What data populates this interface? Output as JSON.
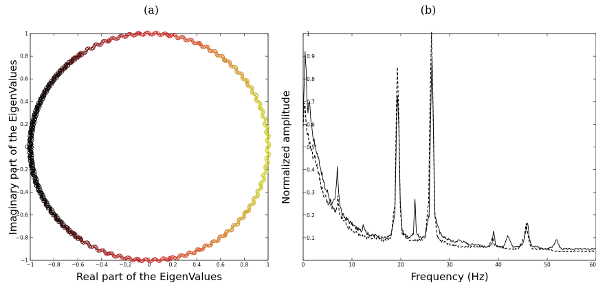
{
  "chart_data": [
    {
      "panel_label": "(a)",
      "type": "scatter",
      "xlabel": "Real part of the EigenValues",
      "ylabel": "Imaginary part of the EigenValues",
      "xlim": [
        -1,
        1
      ],
      "ylim": [
        -1,
        1
      ],
      "xticks": [
        "−1",
        "−0.8",
        "−0.6",
        "−0.4",
        "−0.2",
        "0",
        "0.2",
        "0.4",
        "0.6",
        "0.8",
        "1"
      ],
      "yticks": [
        "−1",
        "−0.8",
        "−0.6",
        "−0.4",
        "−0.2",
        "0",
        "0.2",
        "0.4",
        "0.6",
        "0.8",
        "1"
      ],
      "grid": false,
      "description_points": "eigenvalues lying on the unit circle |z| = 1",
      "points": [
        {
          "angle_deg": 0,
          "x": 1.0,
          "y": 0.0,
          "color": "#d8d020"
        },
        {
          "angle_deg": 20,
          "x": 0.94,
          "y": 0.34,
          "color": "#c8c820"
        },
        {
          "angle_deg": 35,
          "x": 0.82,
          "y": 0.57,
          "color": "#d0a020"
        },
        {
          "angle_deg": 50,
          "x": 0.64,
          "y": 0.77,
          "color": "#d08020"
        },
        {
          "angle_deg": 65,
          "x": 0.42,
          "y": 0.91,
          "color": "#d05020"
        },
        {
          "angle_deg": 80,
          "x": 0.17,
          "y": 0.98,
          "color": "#d03020"
        },
        {
          "angle_deg": 95,
          "x": -0.09,
          "y": 1.0,
          "color": "#c02020"
        },
        {
          "angle_deg": 110,
          "x": -0.34,
          "y": 0.94,
          "color": "#a01818"
        },
        {
          "angle_deg": 125,
          "x": -0.57,
          "y": 0.82,
          "color": "#601010"
        },
        {
          "angle_deg": 140,
          "x": -0.77,
          "y": 0.64,
          "color": "#200808"
        },
        {
          "angle_deg": 160,
          "x": -0.94,
          "y": 0.34,
          "color": "#000000"
        },
        {
          "angle_deg": 180,
          "x": -1.0,
          "y": 0.0,
          "color": "#000000"
        },
        {
          "angle_deg": 200,
          "x": -0.94,
          "y": -0.34,
          "color": "#000000"
        },
        {
          "angle_deg": 220,
          "x": -0.77,
          "y": -0.64,
          "color": "#200808"
        },
        {
          "angle_deg": 235,
          "x": -0.57,
          "y": -0.82,
          "color": "#601010"
        },
        {
          "angle_deg": 250,
          "x": -0.34,
          "y": -0.94,
          "color": "#a01818"
        },
        {
          "angle_deg": 265,
          "x": -0.09,
          "y": -1.0,
          "color": "#c02020"
        },
        {
          "angle_deg": 280,
          "x": 0.17,
          "y": -0.98,
          "color": "#d03020"
        },
        {
          "angle_deg": 295,
          "x": 0.42,
          "y": -0.91,
          "color": "#d05020"
        },
        {
          "angle_deg": 310,
          "x": 0.64,
          "y": -0.77,
          "color": "#d08020"
        },
        {
          "angle_deg": 325,
          "x": 0.82,
          "y": -0.57,
          "color": "#d0a020"
        },
        {
          "angle_deg": 340,
          "x": 0.94,
          "y": -0.34,
          "color": "#c8c820"
        }
      ]
    },
    {
      "panel_label": "(b)",
      "type": "line",
      "xlabel": "Frequency (Hz)",
      "ylabel": "Normalized amplitude",
      "xlim": [
        0,
        60
      ],
      "ylim": [
        0,
        1
      ],
      "xticks": [
        "0",
        "10",
        "20",
        "30",
        "40",
        "50",
        "60"
      ],
      "yticks": [
        "0.1",
        "0.2",
        "0.3",
        "0.4",
        "0.5",
        "0.6",
        "0.7",
        "0.8",
        "0.9",
        "1"
      ],
      "grid": false,
      "series": [
        {
          "style": "solid",
          "x": [
            0,
            0.2,
            0.4,
            0.6,
            0.8,
            1.0,
            1.3,
            1.6,
            2.0,
            2.5,
            3,
            3.5,
            4,
            4.5,
            5,
            5.5,
            6,
            6.5,
            6.8,
            7.0,
            7.3,
            7.6,
            8,
            9,
            10,
            11,
            12,
            12.3,
            13,
            14,
            15,
            16,
            17,
            18,
            18.8,
            19.1,
            19.3,
            19.6,
            19.9,
            20.3,
            21,
            22,
            22.6,
            22.9,
            23.2,
            24,
            25,
            25.8,
            26.1,
            26.4,
            26.7,
            27,
            28,
            29,
            30,
            31,
            32,
            33,
            34,
            35,
            36,
            37,
            38,
            38.7,
            39,
            39.4,
            40,
            41,
            42,
            43,
            44,
            45,
            45.6,
            46,
            46.4,
            47,
            48,
            49,
            50,
            51,
            52,
            52.5,
            53,
            54,
            55,
            56,
            57,
            58,
            59,
            60
          ],
          "y": [
            0.6,
            0.78,
            0.91,
            0.85,
            0.7,
            0.66,
            0.71,
            0.62,
            0.55,
            0.5,
            0.46,
            0.42,
            0.36,
            0.32,
            0.3,
            0.27,
            0.25,
            0.26,
            0.33,
            0.4,
            0.3,
            0.24,
            0.2,
            0.18,
            0.16,
            0.14,
            0.13,
            0.16,
            0.12,
            0.11,
            0.11,
            0.1,
            0.1,
            0.11,
            0.2,
            0.55,
            0.74,
            0.58,
            0.25,
            0.13,
            0.11,
            0.1,
            0.12,
            0.28,
            0.12,
            0.1,
            0.11,
            0.2,
            0.62,
            0.9,
            0.55,
            0.2,
            0.12,
            0.1,
            0.09,
            0.08,
            0.09,
            0.08,
            0.07,
            0.07,
            0.07,
            0.06,
            0.06,
            0.07,
            0.13,
            0.07,
            0.06,
            0.06,
            0.11,
            0.06,
            0.06,
            0.07,
            0.13,
            0.17,
            0.09,
            0.06,
            0.06,
            0.05,
            0.05,
            0.06,
            0.09,
            0.06,
            0.05,
            0.05,
            0.05,
            0.05,
            0.05,
            0.05,
            0.05,
            0.05
          ]
        },
        {
          "style": "dashed",
          "x": [
            0,
            0.3,
            0.6,
            1.0,
            1.5,
            2,
            2.5,
            3,
            3.5,
            4,
            5,
            6,
            6.8,
            7.1,
            7.5,
            8,
            9,
            10,
            11,
            12,
            13,
            14,
            15,
            16,
            17,
            18,
            18.8,
            19.1,
            19.3,
            19.6,
            19.9,
            20.3,
            21,
            22,
            23,
            24,
            25,
            25.7,
            26,
            26.3,
            26.6,
            26.9,
            27.3,
            28,
            29,
            30,
            32,
            34,
            36,
            38,
            38.8,
            39.2,
            40,
            42,
            44,
            45.3,
            45.7,
            46,
            46.4,
            47,
            48,
            50,
            52,
            54,
            56,
            58,
            60
          ],
          "y": [
            0.58,
            0.7,
            0.6,
            0.55,
            0.5,
            0.46,
            0.45,
            0.4,
            0.35,
            0.3,
            0.26,
            0.23,
            0.22,
            0.27,
            0.2,
            0.18,
            0.15,
            0.13,
            0.12,
            0.11,
            0.1,
            0.1,
            0.1,
            0.09,
            0.09,
            0.1,
            0.25,
            0.65,
            0.85,
            0.62,
            0.22,
            0.12,
            0.1,
            0.09,
            0.09,
            0.09,
            0.1,
            0.25,
            0.7,
            1.0,
            0.7,
            0.25,
            0.12,
            0.09,
            0.08,
            0.07,
            0.06,
            0.06,
            0.06,
            0.06,
            0.1,
            0.07,
            0.06,
            0.05,
            0.05,
            0.1,
            0.16,
            0.12,
            0.07,
            0.05,
            0.05,
            0.05,
            0.04,
            0.04,
            0.04,
            0.04,
            0.04
          ]
        }
      ]
    }
  ]
}
